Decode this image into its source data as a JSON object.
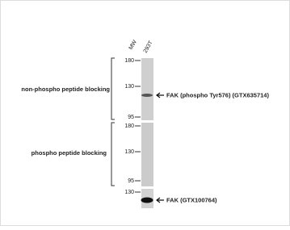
{
  "figure": {
    "header": {
      "mw": "MW",
      "lane": "293T"
    },
    "panels": [
      {
        "label": "non-phospho  peptide blocking",
        "markers": [
          180,
          130,
          95
        ],
        "band": "FAK (phospho  Tyr576) (GTX635714)"
      },
      {
        "label": "phospho  peptide blocking",
        "markers": [
          180,
          130,
          95
        ]
      },
      {
        "markers": [
          130
        ],
        "band": "FAK (GTX100764)"
      }
    ]
  }
}
